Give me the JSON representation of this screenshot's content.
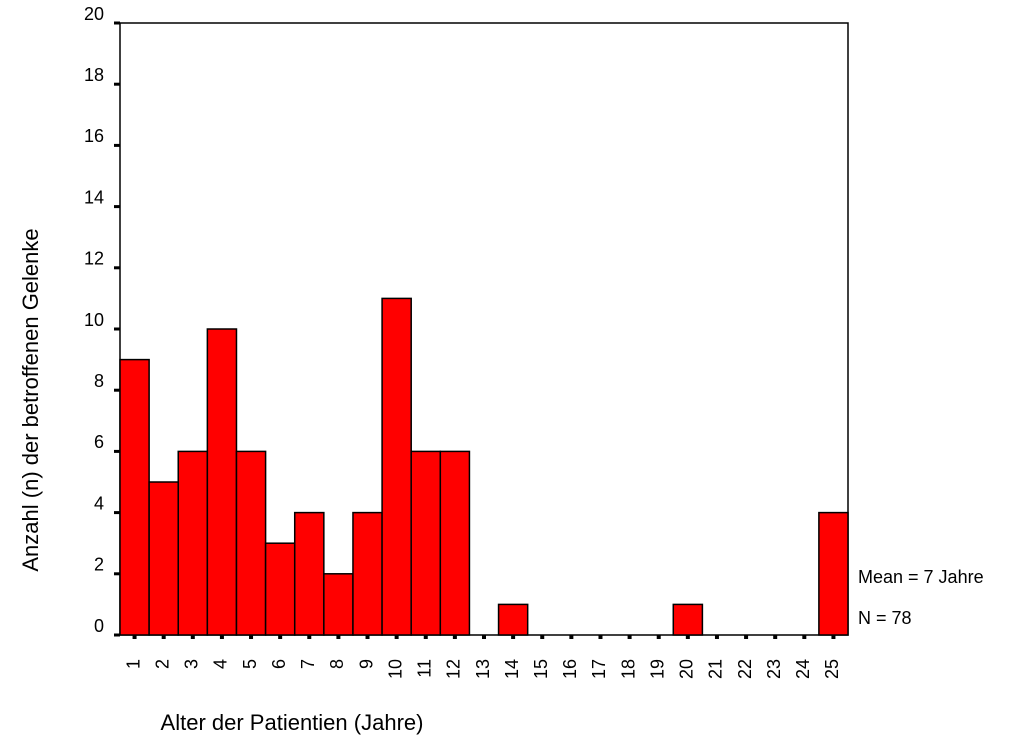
{
  "chart_data": {
    "type": "bar",
    "x_label": "Alter der Patientien (Jahre)",
    "y_label": "Anzahl (n) der betroffenen Gelenke",
    "annotations": [
      "Mean = 7 Jahre",
      "N = 78"
    ],
    "categories": [
      "1",
      "2",
      "3",
      "4",
      "5",
      "6",
      "7",
      "8",
      "9",
      "10",
      "11",
      "12",
      "13",
      "14",
      "15",
      "16",
      "17",
      "18",
      "19",
      "20",
      "21",
      "22",
      "23",
      "24",
      "25"
    ],
    "values": [
      9,
      5,
      6,
      10,
      6,
      3,
      4,
      2,
      4,
      11,
      6,
      6,
      0,
      1,
      0,
      0,
      0,
      0,
      0,
      1,
      0,
      0,
      0,
      0,
      4
    ],
    "color": "#ff0000",
    "ylim": [
      0,
      20
    ],
    "yticks": [
      0,
      2,
      4,
      6,
      8,
      10,
      12,
      14,
      16,
      18,
      20
    ],
    "grid": false
  }
}
